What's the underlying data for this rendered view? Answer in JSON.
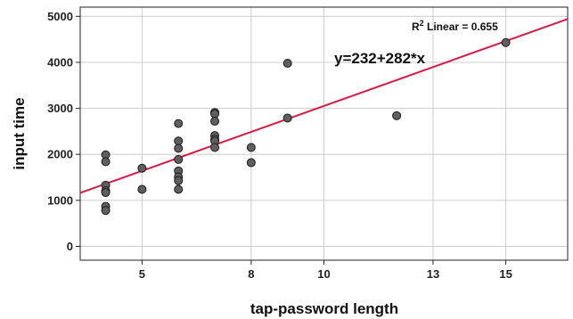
{
  "chart_data": {
    "type": "scatter",
    "xlabel": "tap-password length",
    "ylabel": "input time",
    "xlim": [
      3.3,
      16.7
    ],
    "ylim": [
      -300,
      5200
    ],
    "x_ticks": [
      5,
      8,
      10,
      13,
      15
    ],
    "x_tick_labels": [
      "5",
      "8",
      "10",
      "13",
      "15"
    ],
    "y_ticks": [
      0,
      1000,
      2000,
      3000,
      4000,
      5000
    ],
    "y_tick_labels": [
      "0",
      "1000",
      "2000",
      "3000",
      "4000",
      "5000"
    ],
    "grid": true,
    "legend": "none",
    "point_color": "#5f5f5f",
    "line_color": "#d81b43",
    "points": [
      {
        "x": 4,
        "y": 1990
      },
      {
        "x": 4,
        "y": 1840
      },
      {
        "x": 4,
        "y": 1330
      },
      {
        "x": 4,
        "y": 1210
      },
      {
        "x": 4,
        "y": 1170
      },
      {
        "x": 4,
        "y": 870
      },
      {
        "x": 4,
        "y": 780
      },
      {
        "x": 5,
        "y": 1700
      },
      {
        "x": 5,
        "y": 1240
      },
      {
        "x": 6,
        "y": 2670
      },
      {
        "x": 6,
        "y": 2290
      },
      {
        "x": 6,
        "y": 2130
      },
      {
        "x": 6,
        "y": 1890
      },
      {
        "x": 6,
        "y": 1640
      },
      {
        "x": 6,
        "y": 1510
      },
      {
        "x": 6,
        "y": 1430
      },
      {
        "x": 6,
        "y": 1240
      },
      {
        "x": 7,
        "y": 2910
      },
      {
        "x": 7,
        "y": 2880
      },
      {
        "x": 7,
        "y": 2720
      },
      {
        "x": 7,
        "y": 2410
      },
      {
        "x": 7,
        "y": 2330
      },
      {
        "x": 7,
        "y": 2290
      },
      {
        "x": 7,
        "y": 2150
      },
      {
        "x": 8,
        "y": 2150
      },
      {
        "x": 8,
        "y": 1820
      },
      {
        "x": 9,
        "y": 3980
      },
      {
        "x": 9,
        "y": 2790
      },
      {
        "x": 12,
        "y": 2840
      },
      {
        "x": 15,
        "y": 4430
      }
    ],
    "fit_line": {
      "intercept": 232,
      "slope": 282
    },
    "annotations": {
      "r2_prefix": "R",
      "r2_superscript": "2",
      "r2_text": " Linear = 0.655",
      "equation": "y=232+282*x"
    }
  }
}
